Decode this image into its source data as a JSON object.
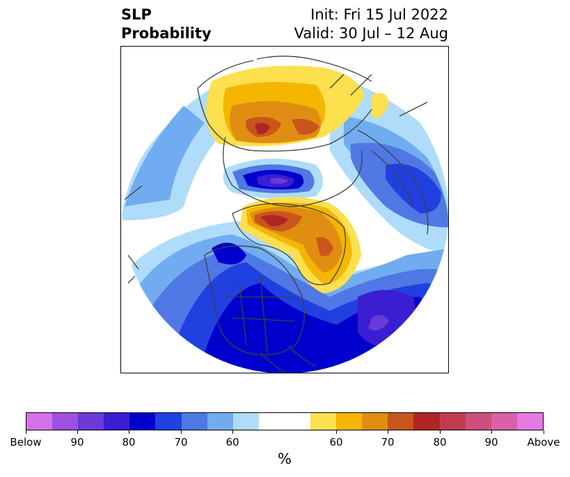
{
  "title": {
    "left_line1": "SLP",
    "left_line2": "Probability",
    "right_line1": "Init: Fri 15 Jul 2022",
    "right_line2": "Valid: 30 Jul – 12 Aug"
  },
  "map": {
    "projection": "polar stereographic (North Pole)",
    "features": [
      "coastlines",
      "country borders",
      "US state borders"
    ]
  },
  "colorbar": {
    "colors": [
      "#d672e8",
      "#9c52de",
      "#6a3ad8",
      "#3a1ed1",
      "#0000cc",
      "#2140e0",
      "#4f78e4",
      "#72acf0",
      "#aedcfa",
      "#ffffff",
      "#fde04d",
      "#f4b600",
      "#e08e12",
      "#c9561c",
      "#b02525",
      "#c23a52",
      "#cd4f7e",
      "#dc5fab",
      "#e57ae2"
    ],
    "tick_labels": [
      "Below",
      "90",
      "80",
      "70",
      "60",
      "60",
      "70",
      "80",
      "90",
      "Above"
    ],
    "unit": "%"
  }
}
